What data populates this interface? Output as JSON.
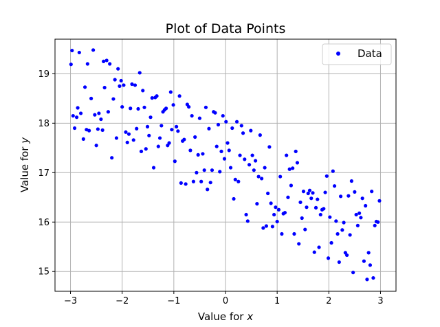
{
  "chart_data": {
    "type": "scatter",
    "title": "Plot of Data Points",
    "xlabel": "Value for ",
    "xlabel_var": "x",
    "ylabel": "Value for ",
    "ylabel_var": "y",
    "xlim": [
      -3.3,
      3.3
    ],
    "ylim": [
      14.6,
      19.7
    ],
    "xticks": [
      -3,
      -2,
      -1,
      0,
      1,
      2,
      3
    ],
    "xtick_labels": [
      "−3",
      "−2",
      "−1",
      "0",
      "1",
      "2",
      "3"
    ],
    "yticks": [
      15,
      16,
      17,
      18,
      19
    ],
    "ytick_labels": [
      "15",
      "16",
      "17",
      "18",
      "19"
    ],
    "grid": true,
    "legend_position": "top-right",
    "colors": {
      "points": "#0000ff",
      "grid": "#b0b0b0"
    },
    "series": [
      {
        "name": "Data",
        "marker": "circle",
        "points": [
          [
            -2.99,
            19.19
          ],
          [
            -2.97,
            19.47
          ],
          [
            -2.95,
            18.15
          ],
          [
            -2.92,
            17.9
          ],
          [
            -2.88,
            18.12
          ],
          [
            -2.86,
            18.31
          ],
          [
            -2.83,
            19.43
          ],
          [
            -2.8,
            18.2
          ],
          [
            -2.75,
            17.68
          ],
          [
            -2.72,
            18.73
          ],
          [
            -2.69,
            17.87
          ],
          [
            -2.67,
            19.2
          ],
          [
            -2.64,
            17.85
          ],
          [
            -2.6,
            18.5
          ],
          [
            -2.56,
            19.48
          ],
          [
            -2.53,
            18.17
          ],
          [
            -2.5,
            17.55
          ],
          [
            -2.47,
            17.88
          ],
          [
            -2.45,
            18.2
          ],
          [
            -2.41,
            18.08
          ],
          [
            -2.38,
            17.86
          ],
          [
            -2.36,
            19.25
          ],
          [
            -2.34,
            18.72
          ],
          [
            -2.3,
            19.27
          ],
          [
            -2.27,
            18.23
          ],
          [
            -2.24,
            19.2
          ],
          [
            -2.2,
            17.3
          ],
          [
            -2.17,
            18.49
          ],
          [
            -2.14,
            18.88
          ],
          [
            -2.11,
            17.7
          ],
          [
            -2.08,
            19.1
          ],
          [
            -2.05,
            18.75
          ],
          [
            -2.02,
            18.86
          ],
          [
            -2.0,
            18.33
          ],
          [
            -1.97,
            18.77
          ],
          [
            -1.93,
            17.82
          ],
          [
            -1.9,
            17.61
          ],
          [
            -1.87,
            17.78
          ],
          [
            -1.84,
            18.3
          ],
          [
            -1.81,
            18.79
          ],
          [
            -1.78,
            17.66
          ],
          [
            -1.75,
            18.77
          ],
          [
            -1.72,
            17.89
          ],
          [
            -1.69,
            18.29
          ],
          [
            -1.66,
            19.02
          ],
          [
            -1.63,
            17.43
          ],
          [
            -1.6,
            18.66
          ],
          [
            -1.57,
            18.32
          ],
          [
            -1.54,
            17.48
          ],
          [
            -1.51,
            17.93
          ],
          [
            -1.48,
            17.75
          ],
          [
            -1.45,
            18.12
          ],
          [
            -1.42,
            18.51
          ],
          [
            -1.39,
            17.1
          ],
          [
            -1.36,
            18.52
          ],
          [
            -1.33,
            18.55
          ],
          [
            -1.3,
            17.53
          ],
          [
            -1.27,
            17.7
          ],
          [
            -1.24,
            17.95
          ],
          [
            -1.21,
            18.23
          ],
          [
            -1.18,
            18.27
          ],
          [
            -1.15,
            18.3
          ],
          [
            -1.12,
            17.55
          ],
          [
            -1.09,
            17.6
          ],
          [
            -1.06,
            18.63
          ],
          [
            -1.04,
            17.87
          ],
          [
            -1.01,
            18.37
          ],
          [
            -0.98,
            17.23
          ],
          [
            -0.95,
            17.93
          ],
          [
            -0.92,
            17.84
          ],
          [
            -0.89,
            18.55
          ],
          [
            -0.86,
            16.79
          ],
          [
            -0.83,
            17.64
          ],
          [
            -0.8,
            17.67
          ],
          [
            -0.77,
            16.77
          ],
          [
            -0.74,
            18.38
          ],
          [
            -0.71,
            18.33
          ],
          [
            -0.68,
            17.45
          ],
          [
            -0.65,
            18.15
          ],
          [
            -0.62,
            16.82
          ],
          [
            -0.59,
            17.72
          ],
          [
            -0.56,
            17.0
          ],
          [
            -0.53,
            17.36
          ],
          [
            -0.5,
            18.1
          ],
          [
            -0.47,
            16.82
          ],
          [
            -0.44,
            17.38
          ],
          [
            -0.41,
            17.05
          ],
          [
            -0.38,
            18.32
          ],
          [
            -0.35,
            16.66
          ],
          [
            -0.32,
            17.89
          ],
          [
            -0.29,
            16.8
          ],
          [
            -0.26,
            17.05
          ],
          [
            -0.23,
            18.23
          ],
          [
            -0.2,
            18.21
          ],
          [
            -0.17,
            17.53
          ],
          [
            -0.14,
            17.97
          ],
          [
            -0.11,
            17.02
          ],
          [
            -0.08,
            17.43
          ],
          [
            -0.05,
            18.15
          ],
          [
            -0.02,
            17.28
          ],
          [
            0.01,
            18.03
          ],
          [
            0.04,
            17.6
          ],
          [
            0.07,
            17.45
          ],
          [
            0.1,
            17.1
          ],
          [
            0.13,
            17.9
          ],
          [
            0.16,
            16.47
          ],
          [
            0.19,
            16.86
          ],
          [
            0.22,
            18.03
          ],
          [
            0.25,
            16.82
          ],
          [
            0.28,
            17.35
          ],
          [
            0.31,
            17.95
          ],
          [
            0.34,
            17.8
          ],
          [
            0.37,
            17.27
          ],
          [
            0.4,
            16.15
          ],
          [
            0.43,
            16.02
          ],
          [
            0.46,
            17.16
          ],
          [
            0.49,
            17.85
          ],
          [
            0.52,
            17.35
          ],
          [
            0.55,
            17.05
          ],
          [
            0.58,
            17.24
          ],
          [
            0.61,
            16.37
          ],
          [
            0.64,
            16.92
          ],
          [
            0.67,
            17.76
          ],
          [
            0.7,
            16.88
          ],
          [
            0.73,
            15.88
          ],
          [
            0.76,
            17.1
          ],
          [
            0.79,
            15.92
          ],
          [
            0.82,
            16.58
          ],
          [
            0.85,
            17.52
          ],
          [
            0.88,
            16.38
          ],
          [
            0.91,
            15.91
          ],
          [
            0.94,
            16.15
          ],
          [
            0.97,
            16.3
          ],
          [
            1.0,
            16.01
          ],
          [
            1.03,
            16.25
          ],
          [
            1.06,
            16.92
          ],
          [
            1.09,
            15.76
          ],
          [
            1.12,
            16.17
          ],
          [
            1.15,
            16.19
          ],
          [
            1.18,
            17.35
          ],
          [
            1.21,
            16.5
          ],
          [
            1.24,
            17.07
          ],
          [
            1.27,
            16.74
          ],
          [
            1.3,
            17.09
          ],
          [
            1.33,
            15.76
          ],
          [
            1.36,
            17.43
          ],
          [
            1.39,
            17.2
          ],
          [
            1.42,
            15.56
          ],
          [
            1.45,
            16.4
          ],
          [
            1.48,
            16.08
          ],
          [
            1.51,
            16.62
          ],
          [
            1.54,
            15.85
          ],
          [
            1.57,
            16.3
          ],
          [
            1.6,
            16.58
          ],
          [
            1.63,
            16.64
          ],
          [
            1.66,
            16.48
          ],
          [
            1.69,
            16.59
          ],
          [
            1.72,
            15.39
          ],
          [
            1.75,
            16.29
          ],
          [
            1.78,
            16.46
          ],
          [
            1.81,
            15.49
          ],
          [
            1.84,
            16.15
          ],
          [
            1.87,
            16.25
          ],
          [
            1.9,
            16.27
          ],
          [
            1.93,
            16.6
          ],
          [
            1.96,
            16.93
          ],
          [
            1.99,
            15.27
          ],
          [
            2.02,
            16.1
          ],
          [
            2.05,
            15.58
          ],
          [
            2.08,
            17.03
          ],
          [
            2.11,
            16.73
          ],
          [
            2.14,
            16.02
          ],
          [
            2.17,
            15.76
          ],
          [
            2.2,
            15.19
          ],
          [
            2.23,
            16.52
          ],
          [
            2.26,
            15.84
          ],
          [
            2.29,
            15.99
          ],
          [
            2.32,
            15.38
          ],
          [
            2.35,
            15.33
          ],
          [
            2.38,
            16.53
          ],
          [
            2.41,
            15.74
          ],
          [
            2.44,
            16.83
          ],
          [
            2.47,
            14.98
          ],
          [
            2.5,
            16.61
          ],
          [
            2.53,
            16.15
          ],
          [
            2.56,
            15.93
          ],
          [
            2.59,
            16.18
          ],
          [
            2.62,
            16.09
          ],
          [
            2.65,
            16.48
          ],
          [
            2.68,
            15.21
          ],
          [
            2.71,
            16.33
          ],
          [
            2.74,
            14.84
          ],
          [
            2.77,
            15.38
          ],
          [
            2.8,
            15.13
          ],
          [
            2.83,
            16.62
          ],
          [
            2.86,
            14.87
          ],
          [
            2.89,
            15.93
          ],
          [
            2.92,
            16.01
          ],
          [
            2.95,
            16.0
          ],
          [
            2.98,
            16.43
          ]
        ]
      }
    ]
  }
}
